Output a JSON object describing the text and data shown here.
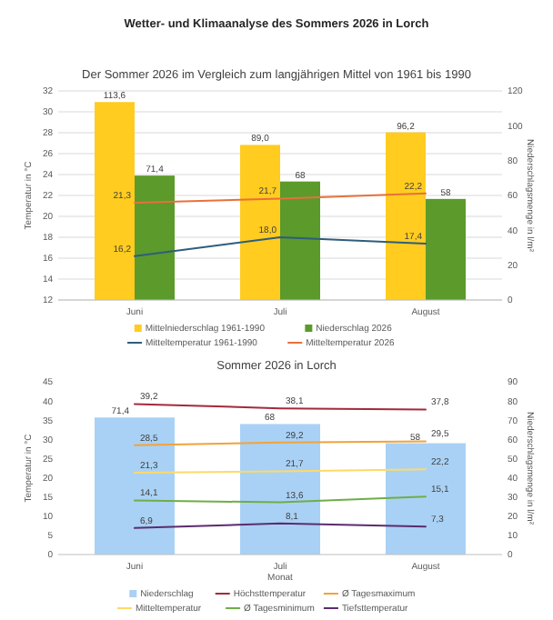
{
  "chart_data": [
    {
      "type": "bar",
      "title": "Der Sommer 2026 im Vergleich zum langjährigen Mittel von 1961 bis 1990",
      "annotations": [
        "Wetter- und Klimaanalyse des Sommers 2026 in Lorch"
      ],
      "categories": [
        "Juni",
        "Juli",
        "August"
      ],
      "ylabel": "Temperatur in °C",
      "y2label": "Niederschlagsmenge in l/m²",
      "ylim": [
        12,
        32
      ],
      "yticks": [
        12,
        14,
        16,
        18,
        20,
        22,
        24,
        26,
        28,
        30,
        32
      ],
      "y2lim": [
        0,
        120
      ],
      "y2ticks": [
        0,
        20,
        40,
        60,
        80,
        100,
        120
      ],
      "grid": "y",
      "legend": "bottom",
      "series": [
        {
          "name": "Mittelniederschlag 1961-1990",
          "axis": "y2",
          "color": "#ffcc1f",
          "values": [
            113.6,
            89.0,
            96.2
          ],
          "value_labels": [
            "113,6",
            "89,0",
            "96,2"
          ]
        },
        {
          "name": "Niederschlag 2026",
          "axis": "y2",
          "color": "#5b9a2b",
          "values": [
            71.4,
            68,
            58
          ],
          "value_labels": [
            "71,4",
            "68",
            "58"
          ]
        },
        {
          "name": "Mitteltemperatur 1961-1990",
          "type": "line",
          "color": "#2e5d7c",
          "values": [
            16.2,
            18.0,
            17.4
          ],
          "value_labels": [
            "16,2",
            "18,0",
            "17,4"
          ]
        },
        {
          "name": "Mitteltemperatur 2026",
          "type": "line",
          "color": "#e8703a",
          "values": [
            21.3,
            21.7,
            22.2
          ],
          "value_labels": [
            "21,3",
            "21,7",
            "22,2"
          ]
        }
      ]
    },
    {
      "type": "bar",
      "title": "Sommer 2026 in Lorch",
      "categories": [
        "Juni",
        "Juli",
        "August"
      ],
      "xlabel": "Monat",
      "ylabel": "Temperatur in °C",
      "y2label": "Niederschlagsmenge in l/m²",
      "ylim": [
        0,
        45
      ],
      "yticks": [
        0,
        5,
        10,
        15,
        20,
        25,
        30,
        35,
        40,
        45
      ],
      "y2lim": [
        0,
        90
      ],
      "y2ticks": [
        0,
        10,
        20,
        30,
        40,
        50,
        60,
        70,
        80,
        90
      ],
      "legend": "bottom",
      "series": [
        {
          "name": "Niederschlag",
          "axis": "y2",
          "color": "#a9d1f5",
          "values": [
            71.4,
            68,
            58
          ],
          "value_labels": [
            "71,4",
            "68",
            "58"
          ]
        },
        {
          "name": "Höchsttemperatur",
          "type": "line",
          "color": "#a32a3c",
          "values": [
            39.2,
            38.1,
            37.8
          ],
          "value_labels": [
            "39,2",
            "38,1",
            "37,8"
          ]
        },
        {
          "name": "Ø Tagesmaximum",
          "type": "line",
          "color": "#f2a33a",
          "values": [
            28.5,
            29.2,
            29.5
          ],
          "value_labels": [
            "28,5",
            "29,2",
            "29,5"
          ]
        },
        {
          "name": "Mitteltemperatur",
          "type": "line",
          "color": "#ffd966",
          "values": [
            21.3,
            21.7,
            22.2
          ],
          "value_labels": [
            "21,3",
            "21,7",
            "22,2"
          ]
        },
        {
          "name": "Ø Tagesminimum",
          "type": "line",
          "color": "#6fae46",
          "values": [
            14.1,
            13.6,
            15.1
          ],
          "value_labels": [
            "14,1",
            "13,6",
            "15,1"
          ]
        },
        {
          "name": "Tiefsttemperatur",
          "type": "line",
          "color": "#5b2c6f",
          "values": [
            6.9,
            8.1,
            7.3
          ],
          "value_labels": [
            "6,9",
            "8,1",
            "7,3"
          ]
        }
      ]
    }
  ]
}
